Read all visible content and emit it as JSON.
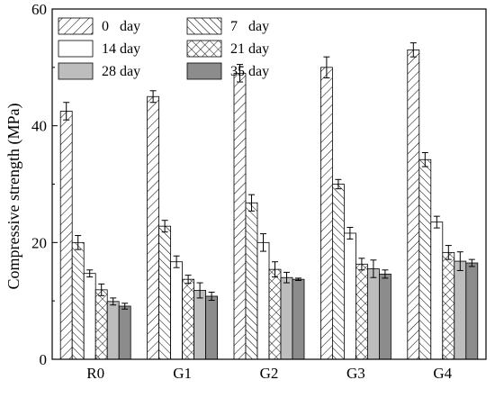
{
  "chart_data": {
    "type": "bar",
    "categories": [
      "R0",
      "G1",
      "G2",
      "G3",
      "G4"
    ],
    "series": [
      {
        "name": "0   day",
        "pattern": "hatch-fwd",
        "values": [
          42.5,
          45.0,
          49.0,
          50.0,
          53.0
        ],
        "errors": [
          1.5,
          1.0,
          1.5,
          1.8,
          1.2
        ]
      },
      {
        "name": "7   day",
        "pattern": "hatch-back",
        "values": [
          20.0,
          22.8,
          26.8,
          30.0,
          34.2
        ],
        "errors": [
          1.2,
          1.0,
          1.4,
          0.8,
          1.2
        ]
      },
      {
        "name": "14 day",
        "pattern": "plain",
        "values": [
          14.7,
          16.7,
          20.0,
          21.6,
          23.5
        ],
        "errors": [
          0.6,
          1.0,
          1.5,
          1.0,
          1.0
        ]
      },
      {
        "name": "21 day",
        "pattern": "crosshatch",
        "values": [
          11.9,
          13.7,
          15.4,
          16.3,
          18.3
        ],
        "errors": [
          1.0,
          0.7,
          1.3,
          1.0,
          1.2
        ]
      },
      {
        "name": "28 day",
        "pattern": "light-gray",
        "values": [
          9.9,
          11.8,
          14.0,
          15.5,
          16.8
        ],
        "errors": [
          0.6,
          1.3,
          0.9,
          1.5,
          1.6
        ]
      },
      {
        "name": "35 day",
        "pattern": "dark-gray",
        "values": [
          9.1,
          10.8,
          13.7,
          14.6,
          16.5
        ],
        "errors": [
          0.5,
          0.7,
          0.2,
          0.7,
          0.6
        ]
      }
    ],
    "ylabel": "Compressive strength (MPa)",
    "xlabel": "",
    "title": "",
    "ylim": [
      0,
      60
    ],
    "yticks": [
      0,
      20,
      40,
      60
    ],
    "grid": false,
    "legend_position": "top-left",
    "colors": {
      "light_gray": "#bdbdbd",
      "dark_gray": "#8c8c8c",
      "stroke": "#000000"
    }
  }
}
